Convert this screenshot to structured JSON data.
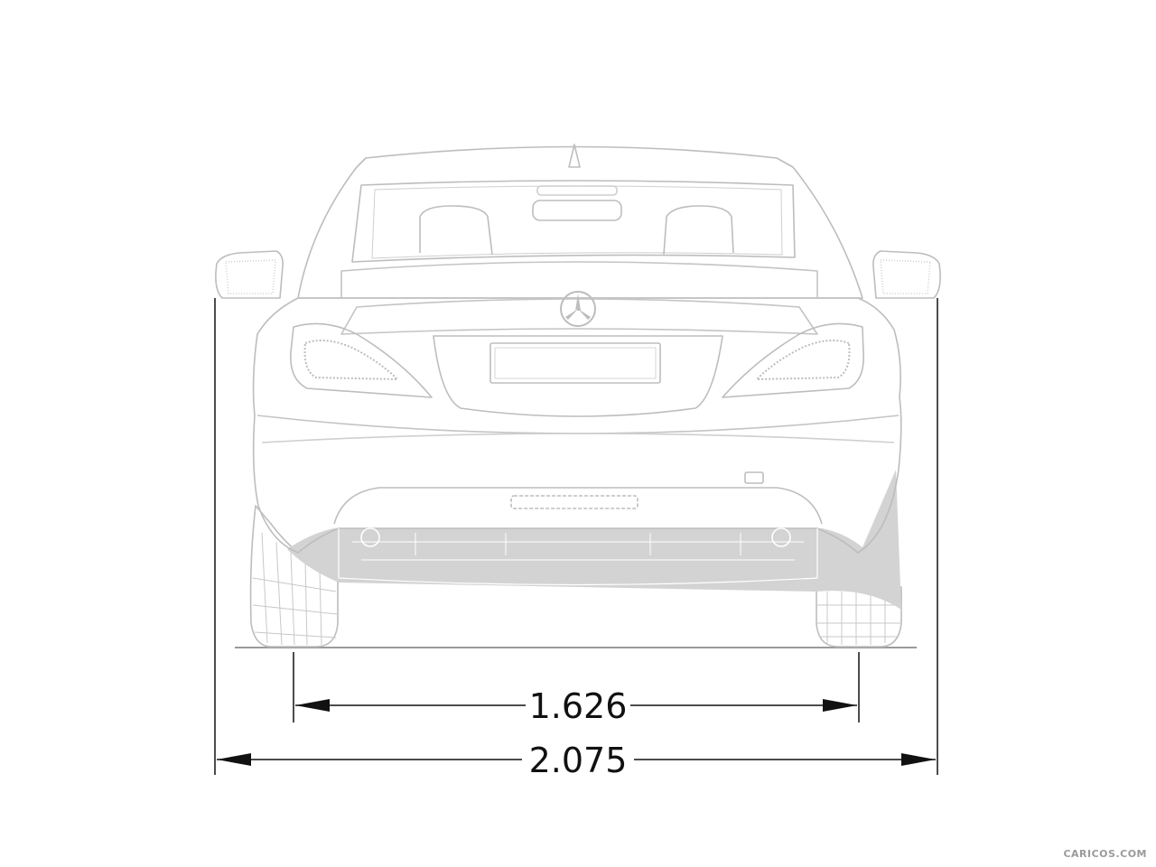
{
  "diagram": {
    "dimensions": {
      "track_width": "1.626",
      "overall_width": "2.075"
    },
    "colors": {
      "outline": "#bdbdbd",
      "shadow": "#d3d3d3",
      "dimension_line": "#111111",
      "background": "#ffffff"
    }
  },
  "watermark": {
    "text": "CARICOS.COM"
  }
}
